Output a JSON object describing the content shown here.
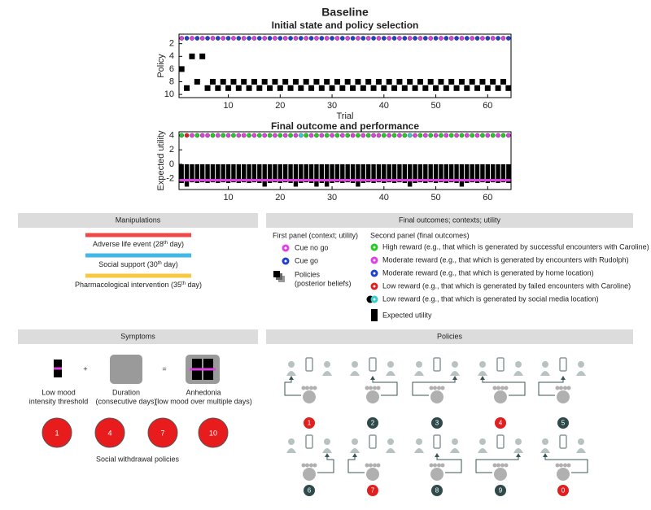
{
  "figure_title": "Baseline",
  "chart_data": [
    {
      "type": "scatter",
      "title": "Initial state and policy selection",
      "x_label": "Trial",
      "y_label": "Policy",
      "x": [
        1,
        2,
        3,
        4,
        5,
        6,
        7,
        8,
        9,
        10,
        11,
        12,
        13,
        14,
        15,
        16,
        17,
        18,
        19,
        20,
        21,
        22,
        23,
        24,
        25,
        26,
        27,
        28,
        29,
        30,
        31,
        32,
        33,
        34,
        35,
        36,
        37,
        38,
        39,
        40,
        41,
        42,
        43,
        44,
        45,
        46,
        47,
        48,
        49,
        50,
        51,
        52,
        53,
        54,
        55,
        56,
        57,
        58,
        59,
        60,
        61,
        62,
        63,
        64
      ],
      "values": [
        6,
        9,
        4,
        8,
        4,
        9,
        8,
        9,
        8,
        9,
        8,
        9,
        8,
        9,
        8,
        9,
        8,
        9,
        8,
        9,
        8,
        9,
        8,
        9,
        8,
        9,
        8,
        9,
        8,
        9,
        8,
        9,
        8,
        9,
        8,
        9,
        8,
        9,
        8,
        9,
        8,
        9,
        8,
        9,
        8,
        9,
        8,
        9,
        8,
        9,
        8,
        9,
        8,
        9,
        8,
        9,
        8,
        9,
        8,
        9,
        8,
        9,
        8,
        9
      ],
      "color": "#000000",
      "cue_colors": [
        "#e040e0",
        "#2040d0",
        "#e040e0",
        "#2040d0",
        "#e040e0",
        "#2040d0",
        "#e040e0",
        "#2040d0",
        "#e040e0",
        "#2040d0",
        "#e040e0",
        "#2040d0",
        "#e040e0",
        "#2040d0",
        "#e040e0",
        "#2040d0",
        "#e040e0",
        "#2040d0",
        "#e040e0",
        "#2040d0",
        "#e040e0",
        "#2040d0",
        "#e040e0",
        "#2040d0",
        "#e040e0",
        "#2040d0",
        "#e040e0",
        "#2040d0",
        "#e040e0",
        "#2040d0",
        "#e040e0",
        "#2040d0",
        "#e040e0",
        "#2040d0",
        "#e040e0",
        "#2040d0",
        "#e040e0",
        "#2040d0",
        "#e040e0",
        "#2040d0",
        "#e040e0",
        "#2040d0",
        "#e040e0",
        "#2040d0",
        "#e040e0",
        "#2040d0",
        "#e040e0",
        "#2040d0",
        "#e040e0",
        "#2040d0",
        "#e040e0",
        "#2040d0",
        "#e040e0",
        "#2040d0",
        "#e040e0",
        "#2040d0",
        "#e040e0",
        "#2040d0",
        "#e040e0",
        "#2040d0",
        "#e040e0",
        "#2040d0",
        "#e040e0",
        "#2040d0"
      ],
      "xlim": [
        0.5,
        64.5
      ],
      "xticks": [
        10,
        20,
        30,
        40,
        50,
        60
      ],
      "ylim": [
        0.5,
        10.5
      ],
      "y_reversed": true,
      "yticks": [
        2,
        4,
        6,
        8,
        10
      ]
    },
    {
      "type": "bar",
      "title": "Final outcome and performance",
      "y_label": "Expected utility",
      "x": [
        1,
        2,
        3,
        4,
        5,
        6,
        7,
        8,
        9,
        10,
        11,
        12,
        13,
        14,
        15,
        16,
        17,
        18,
        19,
        20,
        21,
        22,
        23,
        24,
        25,
        26,
        27,
        28,
        29,
        30,
        31,
        32,
        33,
        34,
        35,
        36,
        37,
        38,
        39,
        40,
        41,
        42,
        43,
        44,
        45,
        46,
        47,
        48,
        49,
        50,
        51,
        52,
        53,
        54,
        55,
        56,
        57,
        58,
        59,
        60,
        61,
        62,
        63,
        64
      ],
      "values": [
        -2.6,
        -3.1,
        -2.5,
        -2.6,
        -2.5,
        -2.6,
        -2.5,
        -2.6,
        -2.5,
        -2.6,
        -2.5,
        -2.6,
        -2.5,
        -2.6,
        -2.5,
        -2.6,
        -3.1,
        -2.6,
        -2.5,
        -2.6,
        -2.5,
        -2.6,
        -3.1,
        -2.6,
        -2.5,
        -2.6,
        -3.1,
        -2.6,
        -3.1,
        -2.6,
        -2.5,
        -2.6,
        -2.5,
        -2.6,
        -3.1,
        -2.6,
        -2.5,
        -2.6,
        -2.5,
        -2.6,
        -2.5,
        -2.6,
        -2.5,
        -2.6,
        -3.1,
        -2.6,
        -2.5,
        -2.6,
        -2.5,
        -2.6,
        -2.5,
        -2.6,
        -2.5,
        -2.6,
        -3.1,
        -2.6,
        -2.5,
        -2.6,
        -2.5,
        -2.6,
        -2.5,
        -2.6,
        -2.5,
        -2.6
      ],
      "color": "#000000",
      "outcome_colors": [
        "#22cc22",
        "#e02020",
        "#e040e0",
        "#22cc22",
        "#e040e0",
        "#e040e0",
        "#22cc22",
        "#e040e0",
        "#22cc22",
        "#e040e0",
        "#22cc22",
        "#e040e0",
        "#e040e0",
        "#22cc22",
        "#e040e0",
        "#22cc22",
        "#e040e0",
        "#22cc22",
        "#e040e0",
        "#22cc22",
        "#e040e0",
        "#22cc22",
        "#e040e0",
        "#33cccc",
        "#22cc22",
        "#e040e0",
        "#22cc22",
        "#e040e0",
        "#22cc22",
        "#e040e0",
        "#22cc22",
        "#e040e0",
        "#22cc22",
        "#e040e0",
        "#22cc22",
        "#e040e0",
        "#22cc22",
        "#e040e0",
        "#e040e0",
        "#22cc22",
        "#e040e0",
        "#22cc22",
        "#e040e0",
        "#22cc22",
        "#33cccc",
        "#e040e0",
        "#22cc22",
        "#e040e0",
        "#22cc22",
        "#e040e0",
        "#22cc22",
        "#e040e0",
        "#22cc22",
        "#e040e0",
        "#22cc22",
        "#e040e0",
        "#22cc22",
        "#e040e0",
        "#22cc22",
        "#e040e0",
        "#22cc22",
        "#e040e0",
        "#22cc22",
        "#e040e0"
      ],
      "threshold": {
        "value": -2.2,
        "color": "#e040e0"
      },
      "xlim": [
        0.5,
        64.5
      ],
      "xticks": [
        10,
        20,
        30,
        40,
        50,
        60
      ],
      "ylim": [
        -3.5,
        4.5
      ],
      "yticks": [
        -2,
        0,
        2,
        4
      ]
    }
  ],
  "manipulations": {
    "title": "Manipulations",
    "items": [
      {
        "label": "Adverse life event (28",
        "sup": "th",
        "label_end": " day)",
        "color": "#f04848"
      },
      {
        "label": "Social support (30",
        "sup": "th",
        "label_end": " day)",
        "color": "#40b8e8"
      },
      {
        "label": "Pharmacological intervention (35",
        "sup": "th",
        "label_end": " day)",
        "color": "#f8c840"
      }
    ]
  },
  "outcomes": {
    "title": "Final outcomes; contexts; utility",
    "first_panel": {
      "title": "First panel (context; utility)",
      "items": [
        {
          "label": "Cue no go",
          "color": "#e040e0"
        },
        {
          "label": "Cue go",
          "color": "#2040d0"
        }
      ],
      "policies": [
        "Policies",
        "(posterior beliefs)"
      ]
    },
    "second_panel": {
      "title": "Second panel (final outcomes)",
      "items": [
        {
          "label": "High reward (e.g., that which is generated by successful encounters with Caroline)",
          "color": "#22cc22"
        },
        {
          "label": "Moderate reward (e.g., that which is generated by encounters with Rudolph)",
          "color": "#e040e0"
        },
        {
          "label": "Moderate reward (e.g., that which is generated by home location)",
          "color": "#2040d0"
        },
        {
          "label": "Low reward (e.g., that which is generated by failed encounters with Caroline)",
          "color": "#e02020"
        },
        {
          "label": "Low reward (e.g., that which is generated by social media location)",
          "color": "#33cccc"
        }
      ],
      "utility": "Expected utility"
    }
  },
  "symptoms": {
    "title": "Symptoms",
    "operators": [
      "+",
      "="
    ],
    "items": [
      [
        "Low mood",
        "intensity threshold"
      ],
      [
        "Duration",
        "(consecutive days)"
      ],
      [
        "Anhedonia",
        "(low mood over multiple days)"
      ]
    ],
    "withdrawal": [
      1,
      4,
      7,
      10
    ],
    "caption": "Social withdrawal policies"
  },
  "policies": {
    "title": "Policies",
    "items": [
      {
        "label": 1,
        "color": "#e02020"
      },
      {
        "label": 2,
        "color": "#2f4a4a"
      },
      {
        "label": 3,
        "color": "#2f4a4a"
      },
      {
        "label": 4,
        "color": "#e02020"
      },
      {
        "label": 5,
        "color": "#2f4a4a"
      },
      {
        "label": 6,
        "color": "#2f4a4a"
      },
      {
        "label": 7,
        "color": "#e02020"
      },
      {
        "label": 8,
        "color": "#2f4a4a"
      },
      {
        "label": 9,
        "color": "#2f4a4a"
      },
      {
        "label": 0,
        "color": "#e02020"
      }
    ]
  }
}
